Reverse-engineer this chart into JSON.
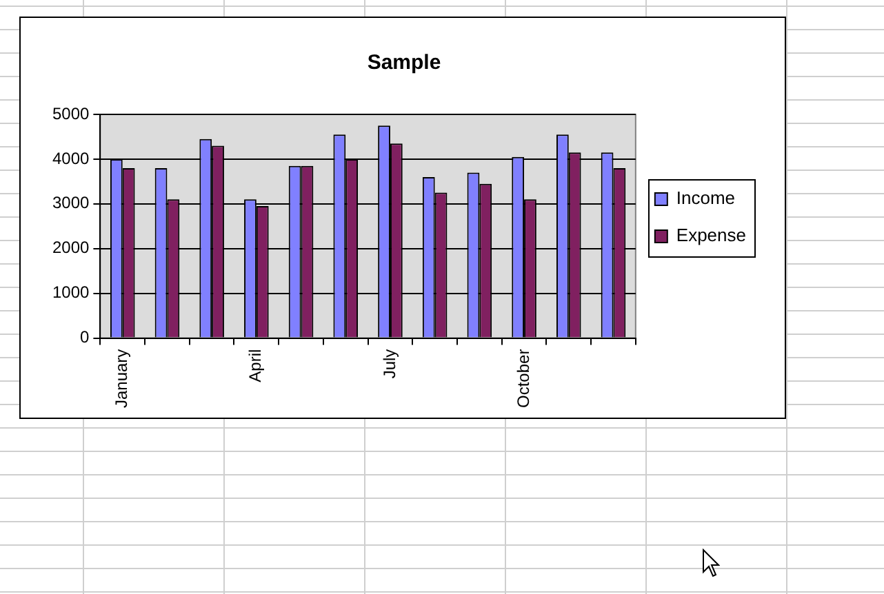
{
  "chart_data": {
    "type": "bar",
    "title": "Sample",
    "categories": [
      "January",
      null,
      null,
      "April",
      null,
      null,
      "July",
      null,
      null,
      "October",
      null,
      null
    ],
    "series": [
      {
        "name": "Income",
        "color": "#8080ff",
        "values": [
          4000,
          3800,
          4450,
          3100,
          3850,
          4550,
          4750,
          3600,
          3700,
          4050,
          4550,
          4150
        ]
      },
      {
        "name": "Expense",
        "color": "#802060",
        "values": [
          3800,
          3100,
          4300,
          2950,
          3850,
          4000,
          4350,
          3250,
          3450,
          3100,
          4150,
          3800
        ]
      }
    ],
    "ylim": [
      0,
      5000
    ],
    "yticks": [
      0,
      1000,
      2000,
      3000,
      4000,
      5000
    ],
    "grid": "y",
    "legend": "right"
  }
}
